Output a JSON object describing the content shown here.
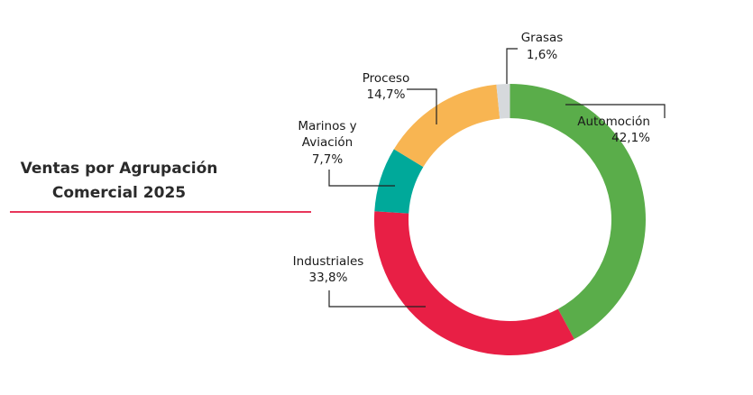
{
  "chart_data": {
    "type": "pie",
    "variant": "donut",
    "title": "Ventas por Agrupación Comercial 2025",
    "title_lines": [
      "Ventas por Agrupación",
      "Comercial 2025"
    ],
    "unit": "%",
    "categories": [
      "Automoción",
      "Industriales",
      "Marinos y Aviación",
      "Proceso",
      "Grasas"
    ],
    "values": [
      42.1,
      33.8,
      7.7,
      14.7,
      1.6
    ],
    "value_labels": [
      "42,1%",
      "33,8%",
      "7,7%",
      "14,7%",
      "1,6%"
    ],
    "colors": [
      "#5aad4a",
      "#e81f45",
      "#00a99a",
      "#f8b552",
      "#d6d9dc"
    ],
    "start_angle": "12 o'clock",
    "direction": "clockwise",
    "legend": "none (leader-line labels)",
    "accent_rule_color": "#e8365a"
  }
}
